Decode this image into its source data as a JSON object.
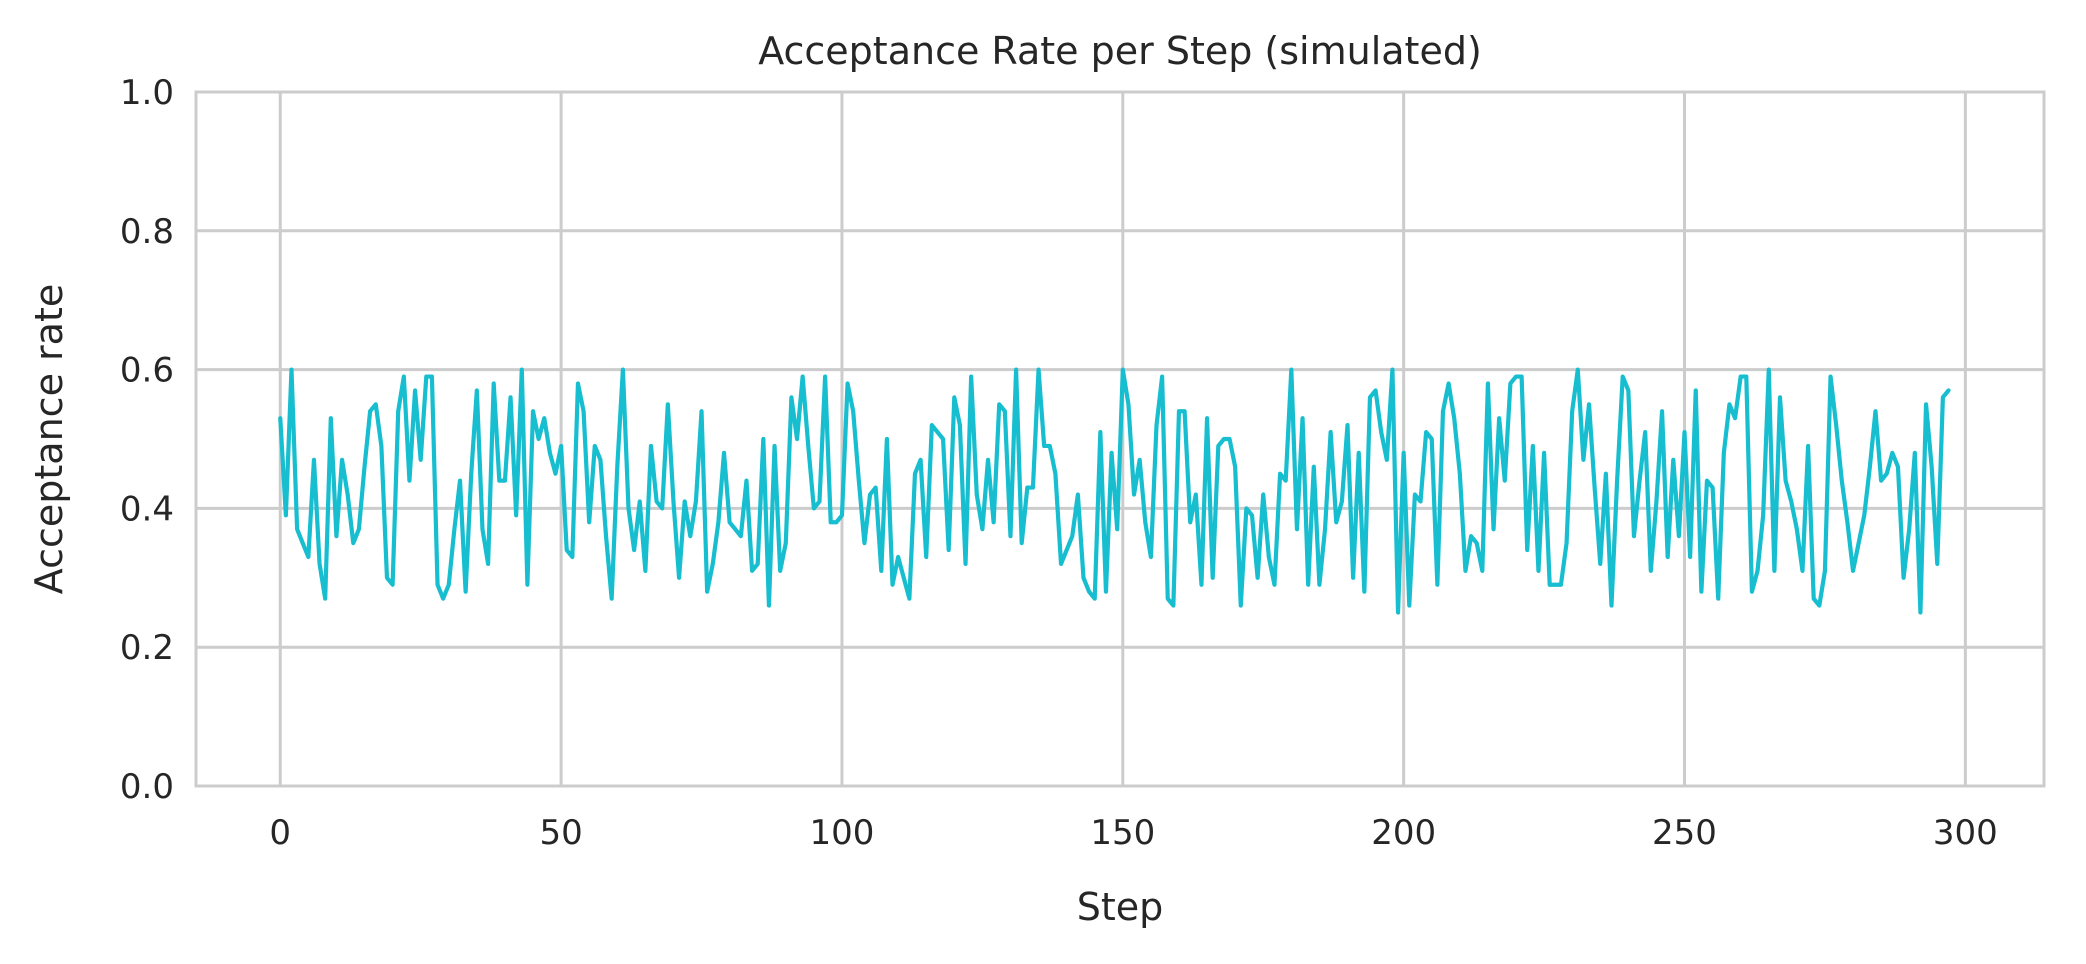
{
  "chart_data": {
    "type": "line",
    "title": "Acceptance Rate per Step (simulated)",
    "xlabel": "Step",
    "ylabel": "Acceptance rate",
    "xlim": [
      -15,
      314
    ],
    "ylim": [
      0.0,
      1.0
    ],
    "xticks": [
      0,
      50,
      100,
      150,
      200,
      250,
      300
    ],
    "yticks": [
      0.0,
      0.2,
      0.4,
      0.6,
      0.8,
      1.0
    ],
    "xtick_labels": [
      "0",
      "50",
      "100",
      "150",
      "200",
      "250",
      "300"
    ],
    "ytick_labels": [
      "0.0",
      "0.2",
      "0.4",
      "0.6",
      "0.8",
      "1.0"
    ],
    "grid": true,
    "line_color": "#17becf",
    "series": [
      {
        "x_start": 0,
        "x_step": 1,
        "values": [
          0.53,
          0.39,
          0.6,
          0.37,
          0.35,
          0.33,
          0.47,
          0.32,
          0.27,
          0.53,
          0.36,
          0.47,
          0.42,
          0.35,
          0.37,
          0.46,
          0.54,
          0.55,
          0.49,
          0.3,
          0.29,
          0.54,
          0.59,
          0.44,
          0.57,
          0.47,
          0.59,
          0.59,
          0.29,
          0.27,
          0.29,
          0.37,
          0.44,
          0.28,
          0.45,
          0.57,
          0.37,
          0.32,
          0.58,
          0.44,
          0.44,
          0.56,
          0.39,
          0.6,
          0.29,
          0.54,
          0.5,
          0.53,
          0.48,
          0.45,
          0.49,
          0.34,
          0.33,
          0.58,
          0.54,
          0.38,
          0.49,
          0.47,
          0.36,
          0.27,
          0.46,
          0.6,
          0.4,
          0.34,
          0.41,
          0.31,
          0.49,
          0.41,
          0.4,
          0.55,
          0.41,
          0.3,
          0.41,
          0.36,
          0.41,
          0.54,
          0.28,
          0.32,
          0.38,
          0.48,
          0.38,
          0.37,
          0.36,
          0.44,
          0.31,
          0.32,
          0.5,
          0.26,
          0.49,
          0.31,
          0.35,
          0.56,
          0.5,
          0.59,
          0.49,
          0.4,
          0.41,
          0.59,
          0.38,
          0.38,
          0.39,
          0.58,
          0.54,
          0.44,
          0.35,
          0.42,
          0.43,
          0.31,
          0.5,
          0.29,
          0.33,
          0.3,
          0.27,
          0.45,
          0.47,
          0.33,
          0.52,
          0.51,
          0.5,
          0.34,
          0.56,
          0.52,
          0.32,
          0.59,
          0.42,
          0.37,
          0.47,
          0.38,
          0.55,
          0.54,
          0.36,
          0.6,
          0.35,
          0.43,
          0.43,
          0.6,
          0.49,
          0.49,
          0.45,
          0.32,
          0.34,
          0.36,
          0.42,
          0.3,
          0.28,
          0.27,
          0.51,
          0.28,
          0.48,
          0.37,
          0.6,
          0.55,
          0.42,
          0.47,
          0.38,
          0.33,
          0.52,
          0.59,
          0.27,
          0.26,
          0.54,
          0.54,
          0.38,
          0.42,
          0.29,
          0.53,
          0.3,
          0.49,
          0.5,
          0.5,
          0.46,
          0.26,
          0.4,
          0.39,
          0.3,
          0.42,
          0.33,
          0.29,
          0.45,
          0.44,
          0.6,
          0.37,
          0.53,
          0.29,
          0.46,
          0.29,
          0.37,
          0.51,
          0.38,
          0.41,
          0.52,
          0.3,
          0.48,
          0.28,
          0.56,
          0.57,
          0.51,
          0.47,
          0.6,
          0.25,
          0.48,
          0.26,
          0.42,
          0.41,
          0.51,
          0.5,
          0.29,
          0.54,
          0.58,
          0.53,
          0.45,
          0.31,
          0.36,
          0.35,
          0.31,
          0.58,
          0.37,
          0.53,
          0.44,
          0.58,
          0.59,
          0.59,
          0.34,
          0.49,
          0.31,
          0.48,
          0.29,
          0.29,
          0.29,
          0.35,
          0.54,
          0.6,
          0.47,
          0.55,
          0.43,
          0.32,
          0.45,
          0.26,
          0.44,
          0.59,
          0.57,
          0.36,
          0.44,
          0.51,
          0.31,
          0.41,
          0.54,
          0.33,
          0.47,
          0.36,
          0.51,
          0.33,
          0.57,
          0.28,
          0.44,
          0.43,
          0.27,
          0.48,
          0.55,
          0.53,
          0.59,
          0.59,
          0.28,
          0.31,
          0.39,
          0.6,
          0.31,
          0.56,
          0.44,
          0.41,
          0.37,
          0.31,
          0.49,
          0.27,
          0.26,
          0.31,
          0.59,
          0.52,
          0.44,
          0.38,
          0.31,
          0.35,
          0.39,
          0.46,
          0.54,
          0.44,
          0.45,
          0.48,
          0.46,
          0.3,
          0.37,
          0.48,
          0.25,
          0.55,
          0.46,
          0.32,
          0.56,
          0.57
        ]
      }
    ]
  }
}
